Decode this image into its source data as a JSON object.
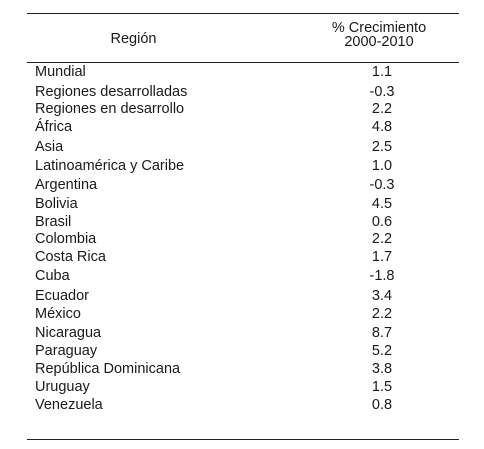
{
  "table": {
    "header": {
      "region": "Región",
      "growth_line1": "% Crecimiento",
      "growth_line2": "2000-2010"
    },
    "rows": [
      {
        "name": "Mundial",
        "value": "1.1"
      },
      {
        "name": "Regiones desarrolladas",
        "value": "-0.3"
      },
      {
        "name": "Regiones en desarrollo",
        "value": "2.2"
      },
      {
        "name": "África",
        "value": "4.8"
      },
      {
        "name": "Asia",
        "value": "2.5"
      },
      {
        "name": "Latinoamérica y Caribe",
        "value": "1.0"
      },
      {
        "name": "Argentina",
        "value": "-0.3"
      },
      {
        "name": "Bolivia",
        "value": "4.5"
      },
      {
        "name": "Brasil",
        "value": "0.6"
      },
      {
        "name": "Colombia",
        "value": "2.2"
      },
      {
        "name": "Costa Rica",
        "value": "1.7"
      },
      {
        "name": "Cuba",
        "value": "-1.8"
      },
      {
        "name": "Ecuador",
        "value": "3.4"
      },
      {
        "name": "México",
        "value": "2.2"
      },
      {
        "name": "Nicaragua",
        "value": "8.7"
      },
      {
        "name": "Paraguay",
        "value": "5.2"
      },
      {
        "name": "República Dominicana",
        "value": "3.8"
      },
      {
        "name": "Uruguay",
        "value": "1.5"
      },
      {
        "name": "Venezuela",
        "value": "0.8"
      }
    ]
  }
}
